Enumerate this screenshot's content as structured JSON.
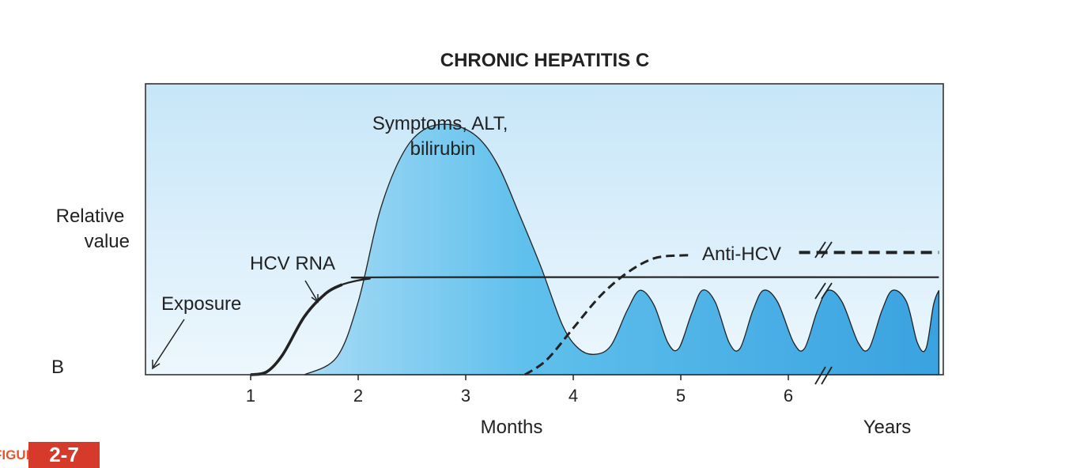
{
  "chart_data": {
    "type": "area",
    "title": "CHRONIC HEPATITIS C",
    "panel_label": "B",
    "ylabel": "Relative value",
    "xlabel_months": "Months",
    "xlabel_years": "Years",
    "x_ticks": [
      "1",
      "2",
      "3",
      "4",
      "5",
      "6"
    ],
    "xlim": [
      0,
      7.4
    ],
    "ylim": [
      0,
      1
    ],
    "axis_break_month": 6.35,
    "series": [
      {
        "name": "Symptoms, ALT, bilirubin",
        "label": "Symptoms, ALT,\nbilirubin",
        "style": "filled",
        "points": [
          [
            1.5,
            0
          ],
          [
            1.8,
            0.06
          ],
          [
            2.0,
            0.25
          ],
          [
            2.2,
            0.56
          ],
          [
            2.4,
            0.75
          ],
          [
            2.6,
            0.84
          ],
          [
            2.85,
            0.86
          ],
          [
            3.1,
            0.82
          ],
          [
            3.3,
            0.72
          ],
          [
            3.5,
            0.55
          ],
          [
            3.7,
            0.37
          ],
          [
            3.9,
            0.17
          ],
          [
            4.05,
            0.09
          ],
          [
            4.2,
            0.07
          ],
          [
            4.35,
            0.1
          ],
          [
            4.5,
            0.22
          ],
          [
            4.62,
            0.29
          ],
          [
            4.75,
            0.24
          ],
          [
            4.88,
            0.11
          ],
          [
            4.98,
            0.09
          ],
          [
            5.1,
            0.21
          ],
          [
            5.2,
            0.29
          ],
          [
            5.32,
            0.25
          ],
          [
            5.45,
            0.11
          ],
          [
            5.55,
            0.09
          ],
          [
            5.67,
            0.22
          ],
          [
            5.77,
            0.29
          ],
          [
            5.9,
            0.25
          ],
          [
            6.05,
            0.11
          ],
          [
            6.15,
            0.09
          ],
          [
            6.27,
            0.22
          ],
          [
            6.37,
            0.29
          ],
          [
            6.5,
            0.25
          ],
          [
            6.65,
            0.11
          ],
          [
            6.75,
            0.09
          ],
          [
            6.87,
            0.22
          ],
          [
            6.97,
            0.29
          ],
          [
            7.1,
            0.25
          ],
          [
            7.2,
            0.11
          ],
          [
            7.28,
            0.09
          ],
          [
            7.35,
            0.24
          ],
          [
            7.4,
            0.29
          ]
        ]
      },
      {
        "name": "HCV RNA",
        "label": "HCV RNA",
        "style": "solid",
        "points": [
          [
            1.0,
            0
          ],
          [
            1.15,
            0.01
          ],
          [
            1.3,
            0.07
          ],
          [
            1.5,
            0.2
          ],
          [
            1.7,
            0.28
          ],
          [
            1.85,
            0.31
          ],
          [
            2.1,
            0.33
          ],
          [
            2.4,
            0.335
          ],
          [
            7.4,
            0.335
          ]
        ]
      },
      {
        "name": "Anti-HCV",
        "label": "Anti-HCV",
        "style": "dashed",
        "points": [
          [
            3.55,
            0
          ],
          [
            3.75,
            0.05
          ],
          [
            4.0,
            0.16
          ],
          [
            4.25,
            0.27
          ],
          [
            4.5,
            0.35
          ],
          [
            4.75,
            0.4
          ],
          [
            5.0,
            0.41
          ],
          [
            5.1,
            0.41
          ]
        ],
        "plateau": [
          [
            6.1,
            0.42
          ],
          [
            7.4,
            0.42
          ]
        ]
      }
    ],
    "annotations": [
      {
        "text": "Exposure",
        "points_to": [
          0.05,
          0.02
        ]
      },
      {
        "text": "HCV RNA",
        "points_to": [
          1.6,
          0.25
        ]
      }
    ]
  },
  "figure_tag": {
    "word": "FIGURE",
    "number": "2-7"
  },
  "colors": {
    "bg_top": "#c7e6f8",
    "bg_bottom": "#edf7fd",
    "fill_light": "#a8dbf5",
    "fill_mid": "#5fc0ec",
    "fill_dark": "#3aa2e0",
    "line": "#222222",
    "accent": "#d63a2a"
  }
}
